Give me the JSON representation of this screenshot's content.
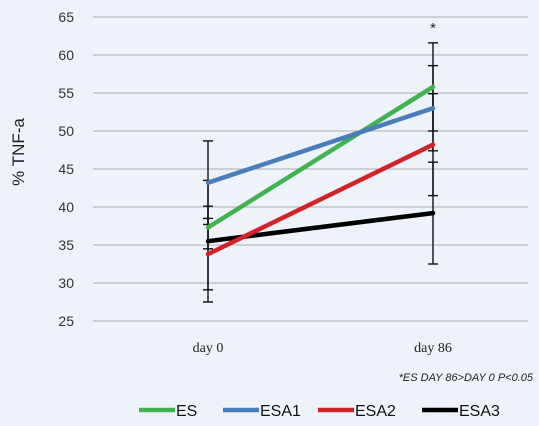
{
  "chart_data": {
    "type": "line",
    "title": "",
    "xlabel": "",
    "ylabel": "% TNF-a",
    "categories": [
      "day 0",
      "day 86"
    ],
    "ylim": [
      25,
      65
    ],
    "yticks": [
      25,
      30,
      35,
      40,
      45,
      50,
      55,
      60,
      65
    ],
    "grid": true,
    "legend_position": "bottom",
    "series": [
      {
        "name": "ES",
        "color": "#3fb34f",
        "values": [
          37.3,
          55.8
        ],
        "error": [
          2.8,
          5.8
        ]
      },
      {
        "name": "ESA1",
        "color": "#4a7ebb",
        "values": [
          43.2,
          53.0
        ],
        "error": [
          5.5,
          5.6
        ]
      },
      {
        "name": "ESA2",
        "color": "#d2232a",
        "values": [
          33.8,
          48.2
        ],
        "error": [
          4.7,
          6.7
        ]
      },
      {
        "name": "ESA3",
        "color": "#000000",
        "values": [
          35.5,
          39.2
        ],
        "error": [
          8.0,
          6.7
        ]
      }
    ],
    "significance_marker": {
      "category": "day 86",
      "text": "*"
    },
    "annotation": "*ES DAY 86>DAY 0  P<0.05"
  }
}
